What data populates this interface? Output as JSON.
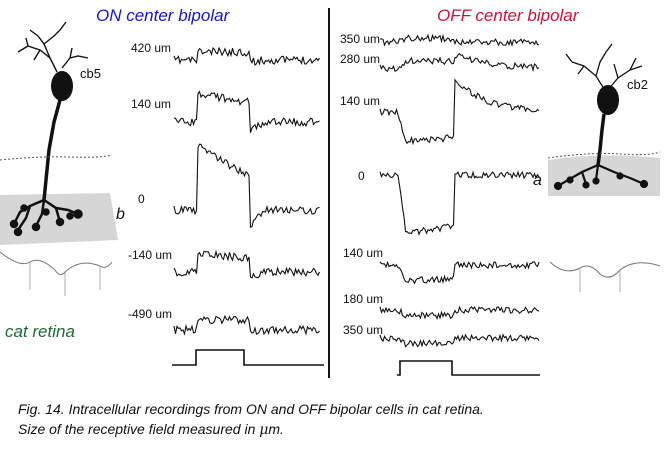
{
  "panels": {
    "on": {
      "title": "ON center bipolar",
      "title_color": "#1515cc",
      "cell_label": "cb5",
      "letter": "b",
      "trace_labels": [
        "420 um",
        "140 um",
        "0",
        "-140 um",
        "-490 um"
      ]
    },
    "off": {
      "title": "OFF center bipolar",
      "title_color": "#d0103a",
      "cell_label": "cb2",
      "letter": "a",
      "trace_labels": [
        "350 um",
        "280 um",
        "140 um",
        "0",
        "140 um",
        "180 um",
        "350 um"
      ]
    }
  },
  "species_label": "cat retina",
  "species_color": "#1d6b3a",
  "caption": {
    "line1": "Fig. 14. Intracellular recordings from ON and OFF bipolar cells in cat retina.",
    "line2_prefix": "Size of the receptive field measured in ",
    "line2_unit_symbol": "μ",
    "line2_unit_rest": "m."
  }
}
